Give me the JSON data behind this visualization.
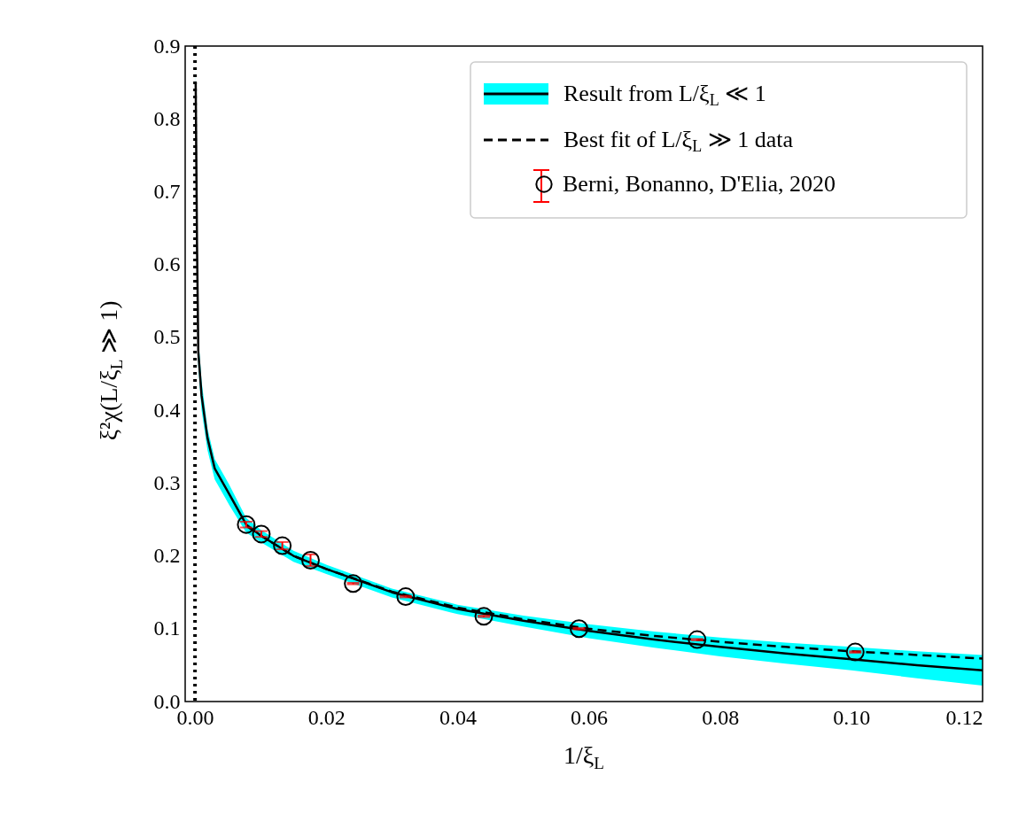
{
  "chart_data": {
    "type": "line",
    "xlabel": "1/ξ$_{L}$",
    "ylabel": "ξ²χ(L/ξ$_{L}$ ≫ 1)",
    "xlim": [
      -0.0015,
      0.12
    ],
    "ylim": [
      0,
      0.9
    ],
    "xticks": [
      {
        "value": 0,
        "label": "0.00"
      },
      {
        "value": 0.02,
        "label": "0.02"
      },
      {
        "value": 0.04,
        "label": "0.04"
      },
      {
        "value": 0.06,
        "label": "0.06"
      },
      {
        "value": 0.08,
        "label": "0.08"
      },
      {
        "value": 0.1,
        "label": "0.10"
      },
      {
        "value": 0.12,
        "label": "0.12"
      }
    ],
    "yticks": [
      {
        "value": 0,
        "label": "0.0"
      },
      0.1,
      0.2,
      0.3,
      0.4,
      0.5,
      0.6,
      0.7,
      0.8,
      0.9
    ],
    "grid": false,
    "legend": "top right",
    "ref_lines": [
      {
        "axis": "x",
        "value": 0,
        "color": "#000000",
        "line_style": "dotted"
      }
    ],
    "series": [
      {
        "name": "Result from L/ξ$_{L}$ ≪ 1",
        "color": "#000000",
        "line_style": "solid",
        "x": [
          0.0001,
          0.0003,
          0.0005,
          0.001,
          0.0019,
          0.003,
          0.0052,
          0.0078,
          0.01,
          0.015,
          0.02,
          0.03,
          0.04,
          0.05,
          0.06,
          0.07,
          0.08,
          0.09,
          0.1,
          0.11,
          0.12
        ],
        "values": [
          0.85,
          0.63,
          0.48,
          0.42,
          0.362,
          0.32,
          0.285,
          0.243,
          0.228,
          0.2,
          0.182,
          0.15,
          0.127,
          0.111,
          0.097,
          0.085,
          0.075,
          0.066,
          0.058,
          0.05,
          0.043
        ],
        "upper": [
          0.87,
          0.66,
          0.5,
          0.44,
          0.375,
          0.333,
          0.298,
          0.252,
          0.236,
          0.207,
          0.188,
          0.155,
          0.133,
          0.118,
          0.106,
          0.096,
          0.088,
          0.081,
          0.075,
          0.069,
          0.064
        ],
        "lower": [
          0.83,
          0.6,
          0.46,
          0.4,
          0.345,
          0.305,
          0.27,
          0.232,
          0.219,
          0.192,
          0.175,
          0.143,
          0.12,
          0.103,
          0.087,
          0.074,
          0.062,
          0.052,
          0.043,
          0.032,
          0.022
        ]
      },
      {
        "name": "Best fit of L/ξ$_{L}$ ≫ 1 data",
        "color": "#000000",
        "line_style": "dashed",
        "x": [
          0.008,
          0.01,
          0.015,
          0.02,
          0.03,
          0.04,
          0.05,
          0.06,
          0.07,
          0.08,
          0.09,
          0.1,
          0.11,
          0.12
        ],
        "values": [
          0.24,
          0.228,
          0.2,
          0.182,
          0.151,
          0.129,
          0.113,
          0.1,
          0.09,
          0.082,
          0.075,
          0.069,
          0.064,
          0.059
        ]
      },
      {
        "name": "Berni, Bonanno, D'Elia, 2020",
        "type": "scatter",
        "color": "#000000",
        "marker": "circle",
        "x": [
          0.0078,
          0.0101,
          0.0133,
          0.0176,
          0.0241,
          0.0321,
          0.044,
          0.0585,
          0.0765,
          0.1006
        ],
        "values": [
          0.243,
          0.23,
          0.214,
          0.194,
          0.162,
          0.144,
          0.117,
          0.1,
          0.085,
          0.068
        ],
        "errors": [
          0.004,
          0.004,
          0.005,
          0.008,
          0.001,
          0.001,
          0.001,
          0.001,
          0.001,
          0.001
        ]
      }
    ]
  }
}
